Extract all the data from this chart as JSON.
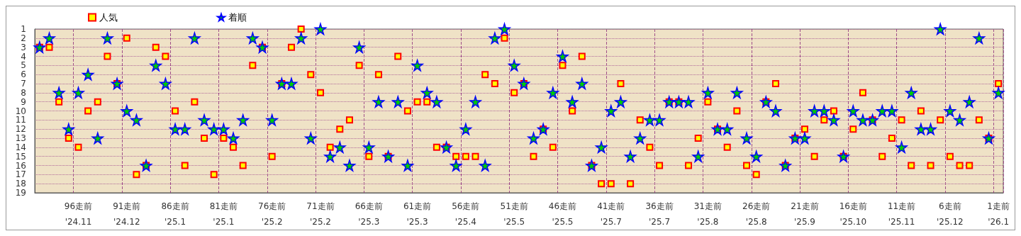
{
  "chart_data": {
    "type": "scatter",
    "categories": [
      null,
      null,
      null,
      null,
      "96走前\n'24.11",
      null,
      null,
      null,
      null,
      "91走前\n'24.12",
      null,
      null,
      null,
      null,
      "86走前\n'25.1",
      null,
      null,
      null,
      null,
      "81走前\n'25.1",
      null,
      null,
      null,
      null,
      "76走前\n'25.2",
      null,
      null,
      null,
      null,
      "71走前\n'25.2",
      null,
      null,
      null,
      null,
      "66走前\n'25.3",
      null,
      null,
      null,
      null,
      "61走前\n'25.3",
      null,
      null,
      null,
      null,
      "56走前\n'25.4",
      null,
      null,
      null,
      null,
      "51走前\n'25.5",
      null,
      null,
      null,
      null,
      "46走前\n'25.5",
      null,
      null,
      null,
      null,
      "41走前\n'25.7",
      null,
      null,
      null,
      null,
      "36走前\n'25.7",
      null,
      null,
      null,
      null,
      "31走前\n'25.8",
      null,
      null,
      null,
      null,
      "26走前\n'25.8",
      null,
      null,
      null,
      null,
      "21走前\n'25.9",
      null,
      null,
      null,
      null,
      "16走前\n'25.10",
      null,
      null,
      null,
      null,
      "11走前\n'25.11",
      null,
      null,
      null,
      null,
      "6走前\n'25.12",
      null,
      null,
      null,
      null,
      "1走前\n'26.1"
    ],
    "series": [
      {
        "name": "人気",
        "color": "#ffff00",
        "marker": "square",
        "values": [
          3,
          3,
          9,
          13,
          14,
          10,
          9,
          4,
          7,
          2,
          17,
          16,
          3,
          4,
          10,
          16,
          9,
          13,
          17,
          13,
          14,
          16,
          5,
          3,
          15,
          7,
          3,
          1,
          6,
          8,
          14,
          12,
          11,
          5,
          15,
          6,
          15,
          4,
          10,
          9,
          9,
          14,
          14,
          15,
          15,
          15,
          6,
          7,
          2,
          8,
          7,
          15,
          12,
          14,
          5,
          10,
          4,
          16,
          18,
          18,
          7,
          18,
          11,
          14,
          16,
          9,
          9,
          16,
          13,
          9,
          12,
          14,
          10,
          16,
          17,
          9,
          7,
          16,
          13,
          12,
          15,
          11,
          10,
          15,
          12,
          8,
          11,
          15,
          13,
          11,
          16,
          10,
          16,
          11,
          15,
          16,
          16,
          11,
          13,
          7
        ]
      },
      {
        "name": "着順",
        "color": "#00cc00",
        "marker": "star",
        "values": [
          3,
          2,
          8,
          12,
          8,
          6,
          13,
          2,
          7,
          10,
          11,
          16,
          5,
          7,
          12,
          12,
          2,
          11,
          12,
          12,
          13,
          11,
          2,
          3,
          11,
          7,
          7,
          2,
          13,
          1,
          15,
          14,
          16,
          3,
          14,
          9,
          15,
          9,
          16,
          5,
          8,
          9,
          14,
          16,
          12,
          9,
          16,
          2,
          1,
          5,
          7,
          13,
          12,
          8,
          4,
          9,
          7,
          16,
          14,
          10,
          9,
          15,
          13,
          11,
          11,
          9,
          9,
          9,
          15,
          8,
          12,
          12,
          8,
          13,
          15,
          9,
          10,
          16,
          13,
          13,
          10,
          10,
          11,
          15,
          10,
          11,
          11,
          10,
          10,
          14,
          8,
          12,
          12,
          1,
          10,
          11,
          9,
          2,
          13,
          8
        ]
      }
    ],
    "ylim": [
      19,
      1
    ],
    "yticks": [
      1,
      2,
      3,
      4,
      5,
      6,
      7,
      8,
      9,
      10,
      11,
      12,
      13,
      14,
      15,
      16,
      17,
      18,
      19
    ],
    "grid": true,
    "legend": "top left"
  }
}
